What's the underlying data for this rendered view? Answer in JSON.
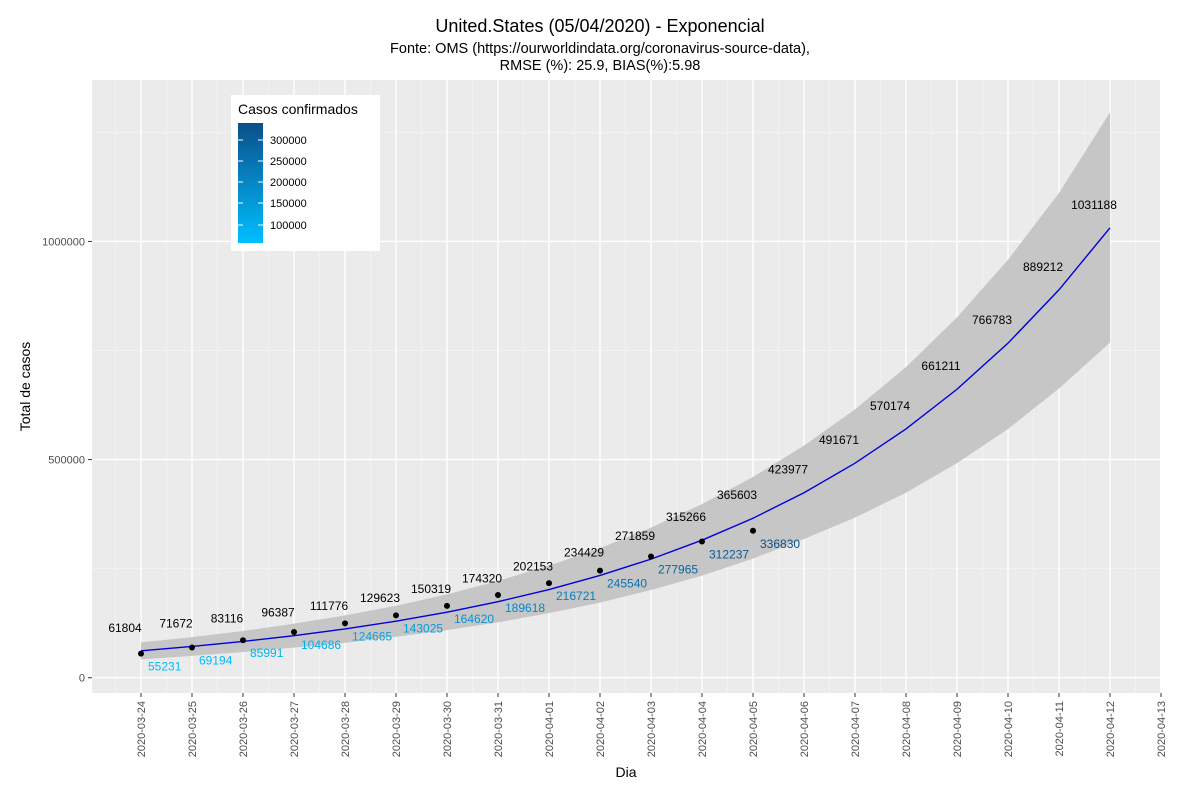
{
  "chart_data": {
    "type": "line",
    "title": "United.States (05/04/2020) - Exponencial",
    "subtitle_line1": "Fonte: OMS (https://ourworldindata.org/coronavirus-source-data),",
    "subtitle_line2": "RMSE (%): 25.9, BIAS(%):5.98",
    "xlabel": "Dia",
    "ylabel": "Total de casos",
    "x_ticks": [
      "2020-03-24",
      "2020-03-25",
      "2020-03-26",
      "2020-03-27",
      "2020-03-28",
      "2020-03-29",
      "2020-03-30",
      "2020-03-31",
      "2020-04-01",
      "2020-04-02",
      "2020-04-03",
      "2020-04-04",
      "2020-04-05",
      "2020-04-06",
      "2020-04-07",
      "2020-04-08",
      "2020-04-09",
      "2020-04-10",
      "2020-04-11",
      "2020-04-12",
      "2020-04-13"
    ],
    "y_ticks": [
      0,
      500000,
      1000000
    ],
    "ylim": [
      -35000,
      1370000
    ],
    "grid": true,
    "legend": {
      "title": "Casos confirmados",
      "placement": "top-left",
      "labels": [
        "300000",
        "250000",
        "200000",
        "150000",
        "100000"
      ],
      "color_low": "#00bfff",
      "color_high": "#0b4f8a"
    },
    "colors": {
      "panel": "#ebebeb",
      "grid_major": "#ffffff",
      "ribbon": "#c6c6c6",
      "fit_line": "#0000dd",
      "points": "#000000"
    },
    "fitted_series": {
      "name": "",
      "x": [
        "2020-03-24",
        "2020-03-25",
        "2020-03-26",
        "2020-03-27",
        "2020-03-28",
        "2020-03-29",
        "2020-03-30",
        "2020-03-31",
        "2020-04-01",
        "2020-04-02",
        "2020-04-03",
        "2020-04-04",
        "2020-04-05",
        "2020-04-06",
        "2020-04-07",
        "2020-04-08",
        "2020-04-09",
        "2020-04-10",
        "2020-04-11",
        "2020-04-12"
      ],
      "values": [
        61804,
        71672,
        83116,
        96387,
        111776,
        129623,
        150319,
        174320,
        202153,
        234429,
        271859,
        315266,
        365603,
        423977,
        491671,
        570174,
        661211,
        766783,
        889212,
        1031188
      ],
      "lower": [
        42000,
        50000,
        59000,
        69000,
        80000,
        94000,
        109000,
        127000,
        148000,
        172000,
        201000,
        234000,
        273000,
        318000,
        367000,
        424000,
        492000,
        570000,
        663000,
        768000
      ],
      "upper": [
        81000,
        93000,
        107000,
        124000,
        143000,
        165000,
        191000,
        222000,
        257000,
        297000,
        344000,
        398000,
        460000,
        532000,
        615000,
        712000,
        826000,
        958000,
        1111000,
        1296000
      ]
    },
    "observed_series": {
      "name": "",
      "x": [
        "2020-03-24",
        "2020-03-25",
        "2020-03-26",
        "2020-03-27",
        "2020-03-28",
        "2020-03-29",
        "2020-03-30",
        "2020-03-31",
        "2020-04-01",
        "2020-04-02",
        "2020-04-03",
        "2020-04-04",
        "2020-04-05"
      ],
      "values": [
        55231,
        69194,
        85991,
        104686,
        124665,
        143025,
        164620,
        189618,
        216721,
        245540,
        277965,
        312237,
        336830
      ]
    }
  }
}
